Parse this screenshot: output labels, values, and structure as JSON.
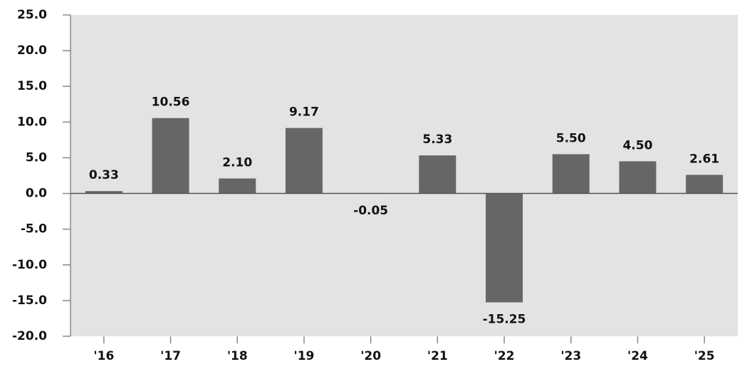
{
  "chart_data": {
    "type": "bar",
    "categories": [
      "'16",
      "'17",
      "'18",
      "'19",
      "'20",
      "'21",
      "'22",
      "'23",
      "'24",
      "'25"
    ],
    "values": [
      0.33,
      10.56,
      2.1,
      9.17,
      -0.05,
      5.33,
      -15.25,
      5.5,
      4.5,
      2.61
    ],
    "value_labels": [
      "0.33",
      "10.56",
      "2.10",
      "9.17",
      "-0.05",
      "5.33",
      "-15.25",
      "5.50",
      "4.50",
      "2.61"
    ],
    "color": "#666666",
    "ylim": [
      -20,
      25
    ],
    "yticks": [
      {
        "value": -20,
        "label": "-20.0"
      },
      {
        "value": -15,
        "label": "-15.0"
      },
      {
        "value": -10,
        "label": "-10.0"
      },
      {
        "value": -5,
        "label": "-5.0"
      },
      {
        "value": 0,
        "label": "0.0"
      },
      {
        "value": 5,
        "label": "5.0"
      },
      {
        "value": 10,
        "label": "10.0"
      },
      {
        "value": 15,
        "label": "15.0"
      },
      {
        "value": 20,
        "label": "20.0"
      },
      {
        "value": 25,
        "label": "25.0"
      }
    ],
    "grid": false
  }
}
